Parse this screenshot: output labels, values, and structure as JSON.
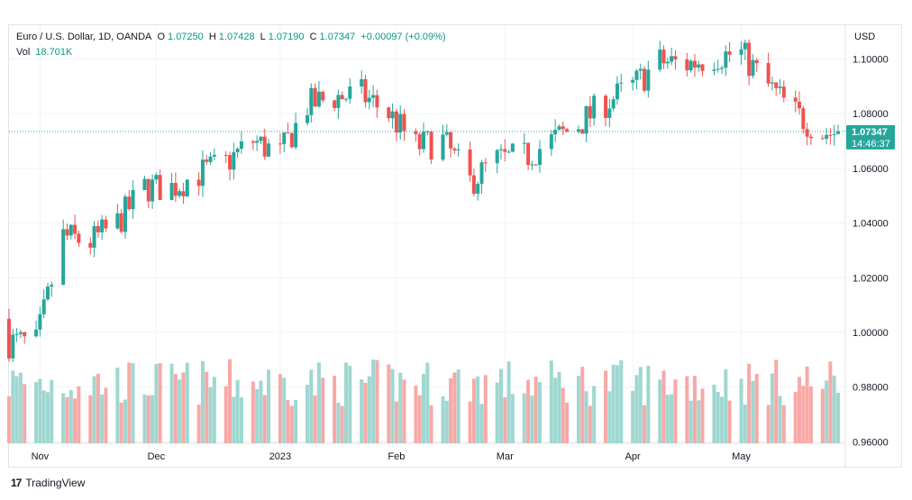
{
  "legend": {
    "symbol": "Euro / U.S. Dollar, 1D, OANDA",
    "open_label": "O",
    "open": "1.07250",
    "high_label": "H",
    "high": "1.07428",
    "low_label": "L",
    "low": "1.07190",
    "close_label": "C",
    "close": "1.07347",
    "change": "+0.00097 (+0.09%)",
    "vol_label": "Vol",
    "vol": "18.701K"
  },
  "price_label": {
    "price": "1.07347",
    "countdown": "14:46:37"
  },
  "footer": {
    "logo": "17",
    "brand": "TradingView"
  },
  "colors": {
    "up": "#26a69a",
    "down": "#ef5350",
    "up_vol": "#9fd7d1",
    "down_vol": "#f7a9a7",
    "grid": "#f0f3fa",
    "badge": "#26a69a"
  },
  "chart_data": {
    "type": "candlestick",
    "currency": "USD",
    "y_ticks": [
      0.96,
      0.98,
      1.0,
      1.02,
      1.04,
      1.06,
      1.08,
      1.1
    ],
    "y_tick_labels": [
      "0.96000",
      "0.98000",
      "1.00000",
      "1.02000",
      "1.04000",
      "1.06000",
      "1.08000",
      "1.10000"
    ],
    "ylim": [
      0.9595,
      1.1123
    ],
    "x_tick_labels": [
      "Nov",
      "Dec",
      "2023",
      "Feb",
      "Mar",
      "Apr",
      "May"
    ],
    "x_tick_dates": [
      "2022-11-01",
      "2022-12-01",
      "2023-01-02",
      "2023-02-01",
      "2023-03-01",
      "2023-04-03",
      "2023-05-01"
    ],
    "last_price": 1.07347,
    "weekly_close": [
      [
        "2022-10-24",
        0.9965
      ],
      [
        "2022-10-31",
        0.996
      ],
      [
        "2022-11-07",
        1.035
      ],
      [
        "2022-11-14",
        1.033
      ],
      [
        "2022-11-21",
        1.04
      ],
      [
        "2022-11-28",
        1.053
      ],
      [
        "2022-12-05",
        1.053
      ],
      [
        "2022-12-12",
        1.058
      ],
      [
        "2022-12-19",
        1.062
      ],
      [
        "2022-12-26",
        1.07
      ],
      [
        "2023-01-02",
        1.065
      ],
      [
        "2023-01-09",
        1.083
      ],
      [
        "2023-01-16",
        1.086
      ],
      [
        "2023-01-23",
        1.087
      ],
      [
        "2023-01-30",
        1.08
      ],
      [
        "2023-02-06",
        1.068
      ],
      [
        "2023-02-13",
        1.07
      ],
      [
        "2023-02-20",
        1.055
      ],
      [
        "2023-02-27",
        1.063
      ],
      [
        "2023-03-06",
        1.064
      ],
      [
        "2023-03-13",
        1.07
      ],
      [
        "2023-03-20",
        1.076
      ],
      [
        "2023-03-27",
        1.084
      ],
      [
        "2023-04-03",
        1.09
      ],
      [
        "2023-04-10",
        1.099
      ],
      [
        "2023-04-17",
        1.098
      ],
      [
        "2023-04-24",
        1.101
      ],
      [
        "2023-05-01",
        1.102
      ],
      [
        "2023-05-08",
        1.09
      ],
      [
        "2023-05-15",
        1.08
      ],
      [
        "2023-05-22",
        1.073
      ]
    ]
  }
}
